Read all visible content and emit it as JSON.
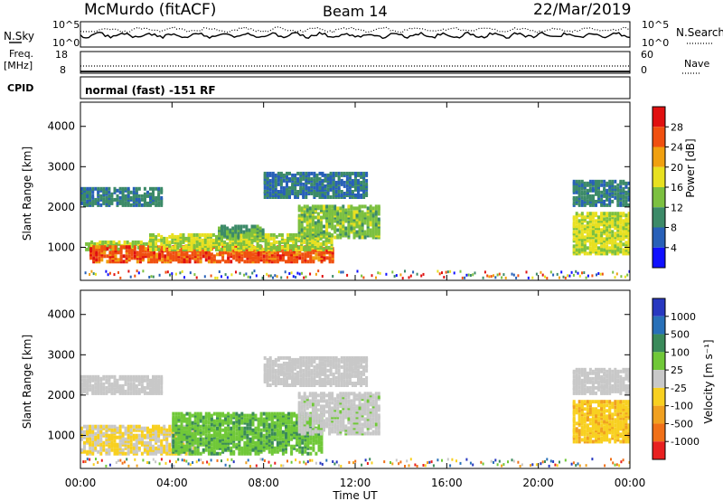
{
  "header": {
    "station": "McMurdo (fitACF)",
    "beam": "Beam 14",
    "date": "22/Mar/2019"
  },
  "summary": {
    "nsky_label": "N.Sky",
    "nsky_max": "10^5",
    "nsky_min": "10^0",
    "nsearch_label": "N.Search",
    "nsearch_max": "10^5",
    "nsearch_min": "10^0",
    "freq_label": "Freq.",
    "freq_unit": "[MHz]",
    "freq_max": "18",
    "freq_min": "8",
    "nave_label": "Nave",
    "nave_max": "60",
    "nave_min": "0",
    "cpid_label": "CPID",
    "cpid_text": "normal (fast) -151 RF"
  },
  "axes": {
    "xlabel": "Time UT",
    "ylabel": "Slant Range [km]",
    "xticks": [
      "00:00",
      "04:00",
      "08:00",
      "12:00",
      "16:00",
      "20:00",
      "00:00"
    ],
    "yticks": [
      "1000",
      "2000",
      "3000",
      "4000"
    ]
  },
  "colorbars": {
    "power": {
      "label": "Power [dB]",
      "ticks": [
        "4",
        "8",
        "12",
        "16",
        "20",
        "24",
        "28"
      ],
      "colors": [
        "#1010ff",
        "#2860b8",
        "#3c8a68",
        "#7cc040",
        "#e8e020",
        "#f0a010",
        "#f05010",
        "#e01010"
      ]
    },
    "velocity": {
      "label": "Velocity [m s⁻¹]",
      "ticks": [
        "1000",
        "500",
        "100",
        "25",
        "-25",
        "-100",
        "-500",
        "-1000"
      ],
      "colors": [
        "#2838c0",
        "#2870b8",
        "#3a8a5a",
        "#70c838",
        "#c8c8c8",
        "#f8d020",
        "#f0a020",
        "#f07018",
        "#e82020"
      ]
    }
  },
  "chart_data": [
    {
      "type": "heatmap",
      "title": "Power [dB]",
      "xlabel": "Time UT",
      "ylabel": "Slant Range [km]",
      "xlim": [
        0,
        24
      ],
      "ylim": [
        180,
        4600
      ],
      "clim": [
        0,
        32
      ],
      "regions": [
        {
          "t": [
            0.0,
            3.6
          ],
          "r": [
            2000,
            2450
          ],
          "value": 9
        },
        {
          "t": [
            0.2,
            3.0
          ],
          "r": [
            900,
            1100
          ],
          "value": 15
        },
        {
          "t": [
            0.4,
            11.0
          ],
          "r": [
            600,
            1000
          ],
          "value": 26
        },
        {
          "t": [
            3.0,
            11.0
          ],
          "r": [
            900,
            1300
          ],
          "value": 16
        },
        {
          "t": [
            6.0,
            8.0
          ],
          "r": [
            1200,
            1500
          ],
          "value": 11
        },
        {
          "t": [
            9.5,
            13.0
          ],
          "r": [
            1200,
            2000
          ],
          "value": 14
        },
        {
          "t": [
            8.0,
            12.5
          ],
          "r": [
            2200,
            2800
          ],
          "value": 8
        },
        {
          "t": [
            21.5,
            24.0
          ],
          "r": [
            2000,
            2600
          ],
          "value": 9
        },
        {
          "t": [
            21.5,
            24.0
          ],
          "r": [
            800,
            1800
          ],
          "value": 17
        }
      ]
    },
    {
      "type": "heatmap",
      "title": "Velocity [m s⁻¹]",
      "xlabel": "Time UT",
      "ylabel": "Slant Range [km]",
      "xlim": [
        0,
        24
      ],
      "ylim": [
        180,
        4600
      ],
      "clim": [
        -1000,
        1000
      ],
      "regions": [
        {
          "t": [
            0.0,
            3.6
          ],
          "r": [
            2000,
            2450
          ],
          "value": 0
        },
        {
          "t": [
            0.0,
            5.0
          ],
          "r": [
            500,
            1200
          ],
          "value": -110
        },
        {
          "t": [
            4.0,
            10.5
          ],
          "r": [
            500,
            1500
          ],
          "value": 300
        },
        {
          "t": [
            9.5,
            13.0
          ],
          "r": [
            1000,
            2000
          ],
          "value": 60
        },
        {
          "t": [
            8.0,
            12.5
          ],
          "r": [
            2200,
            2900
          ],
          "value": 10
        },
        {
          "t": [
            21.5,
            24.0
          ],
          "r": [
            2000,
            2600
          ],
          "value": 0
        },
        {
          "t": [
            21.5,
            24.0
          ],
          "r": [
            800,
            1800
          ],
          "value": -300
        }
      ]
    }
  ]
}
